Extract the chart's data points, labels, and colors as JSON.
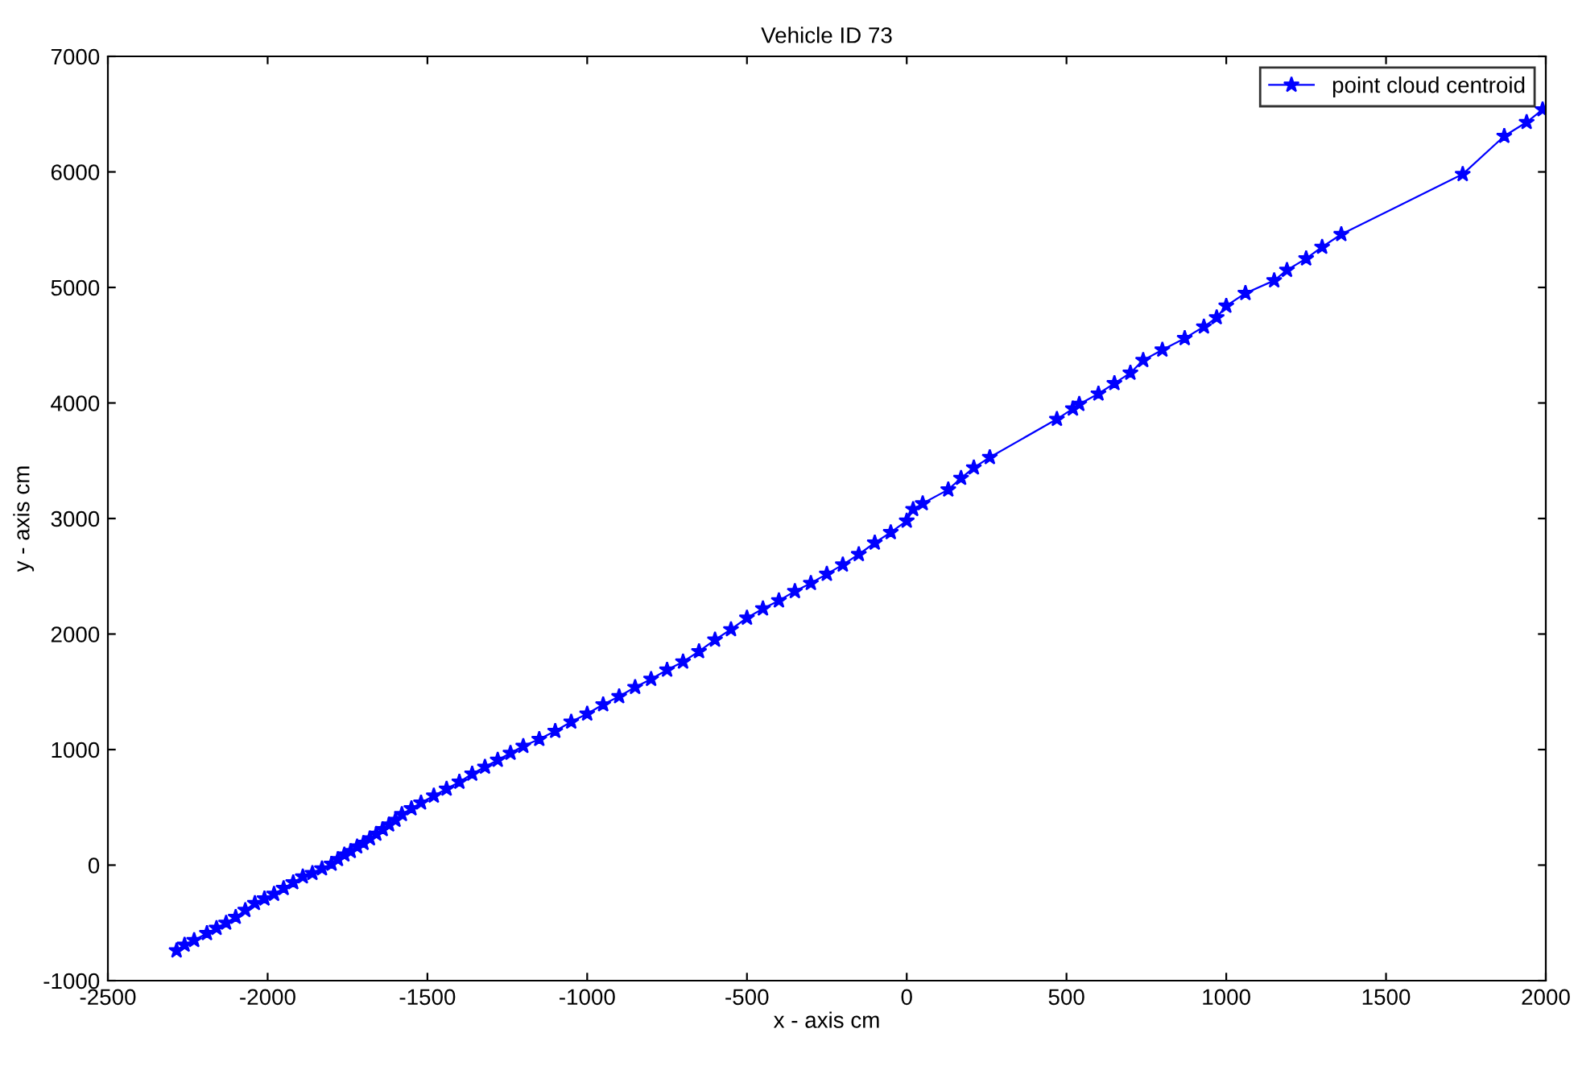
{
  "chart_data": {
    "type": "line",
    "title": "Vehicle ID 73",
    "xlabel": "x - axis cm",
    "ylabel": "y - axis cm",
    "xlim": [
      -2500,
      2000
    ],
    "xticks": [
      -2500,
      -2000,
      -1500,
      -1000,
      -500,
      0,
      500,
      1000,
      1500,
      2000
    ],
    "ylim": [
      -1000,
      7000
    ],
    "yticks": [
      -1000,
      0,
      1000,
      2000,
      3000,
      4000,
      5000,
      6000,
      7000
    ],
    "grid": false,
    "legend": "top right",
    "marker": "star",
    "line_style": "solid",
    "series": [
      {
        "name": "point cloud centroid",
        "color": "#0000ff",
        "x": [
          -2285,
          -2260,
          -2230,
          -2190,
          -2160,
          -2130,
          -2100,
          -2070,
          -2040,
          -2010,
          -1980,
          -1950,
          -1920,
          -1890,
          -1860,
          -1830,
          -1800,
          -1780,
          -1760,
          -1740,
          -1720,
          -1700,
          -1680,
          -1660,
          -1640,
          -1620,
          -1600,
          -1580,
          -1550,
          -1520,
          -1480,
          -1440,
          -1400,
          -1360,
          -1320,
          -1280,
          -1240,
          -1200,
          -1150,
          -1100,
          -1050,
          -1000,
          -950,
          -900,
          -850,
          -800,
          -750,
          -700,
          -650,
          -600,
          -550,
          -500,
          -450,
          -400,
          -350,
          -300,
          -250,
          -200,
          -150,
          -100,
          -50,
          0,
          20,
          50,
          130,
          170,
          210,
          260,
          470,
          520,
          540,
          600,
          650,
          700,
          740,
          800,
          870,
          930,
          970,
          1000,
          1060,
          1150,
          1190,
          1250,
          1300,
          1360,
          1740,
          1870,
          1940,
          1990
        ],
        "values": [
          -740,
          -690,
          -650,
          -590,
          -545,
          -500,
          -450,
          -390,
          -330,
          -290,
          -250,
          -200,
          -150,
          -100,
          -70,
          -30,
          10,
          50,
          90,
          120,
          160,
          190,
          230,
          270,
          310,
          350,
          390,
          440,
          490,
          540,
          600,
          660,
          720,
          790,
          850,
          910,
          970,
          1030,
          1090,
          1160,
          1240,
          1310,
          1390,
          1460,
          1540,
          1610,
          1690,
          1760,
          1850,
          1950,
          2040,
          2140,
          2220,
          2290,
          2370,
          2440,
          2520,
          2600,
          2690,
          2790,
          2880,
          2980,
          3080,
          3130,
          3250,
          3350,
          3440,
          3530,
          3860,
          3950,
          3990,
          4080,
          4170,
          4260,
          4370,
          4460,
          4560,
          4660,
          4740,
          4840,
          4950,
          5060,
          5150,
          5250,
          5350,
          5460,
          5980,
          6310,
          6430,
          6540
        ]
      }
    ]
  }
}
